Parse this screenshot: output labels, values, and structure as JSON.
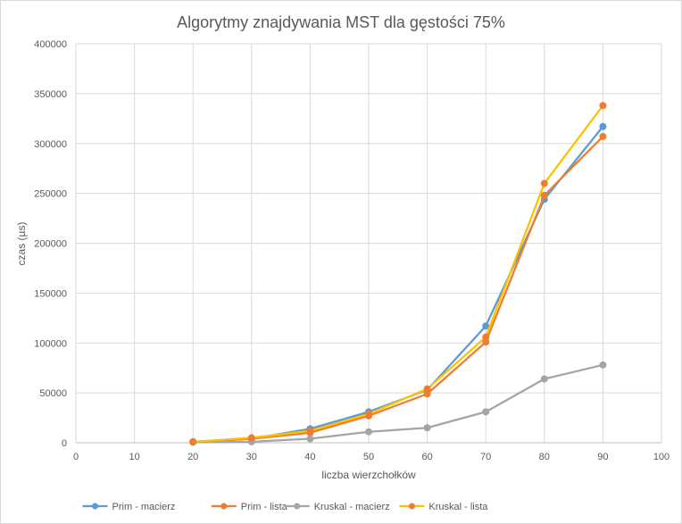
{
  "chart_data": {
    "type": "line",
    "title": "Algorytmy znajdywania MST dla gęstości 75%",
    "xlabel": "liczba wierzchołków",
    "ylabel": "czas (µs)",
    "xlim": [
      0,
      100
    ],
    "ylim": [
      0,
      400000
    ],
    "x_ticks": [
      0,
      10,
      20,
      30,
      40,
      50,
      60,
      70,
      80,
      90,
      100
    ],
    "y_ticks": [
      0,
      50000,
      100000,
      150000,
      200000,
      250000,
      300000,
      350000,
      400000
    ],
    "grid": true,
    "legend_position": "bottom",
    "x": [
      20,
      30,
      40,
      50,
      60,
      70,
      80,
      90
    ],
    "series": [
      {
        "name": "Prim - macierz",
        "color": "#5B9BD5",
        "values": [
          1000,
          4000,
          14000,
          31000,
          53000,
          117000,
          244000,
          317000
        ]
      },
      {
        "name": "Prim - lista",
        "color": "#ED7D31",
        "values": [
          1000,
          4000,
          10000,
          27000,
          49000,
          101000,
          248000,
          307000
        ]
      },
      {
        "name": "Kruskal - macierz",
        "color": "#A5A5A5",
        "values": [
          500,
          1000,
          4000,
          11000,
          15000,
          31000,
          64000,
          78000
        ]
      },
      {
        "name": "Kruskal - lista",
        "color": "#FFC000",
        "values": [
          1000,
          5000,
          12000,
          29000,
          54000,
          106000,
          260000,
          338000
        ],
        "marker_color": "#ED7D31"
      }
    ]
  }
}
